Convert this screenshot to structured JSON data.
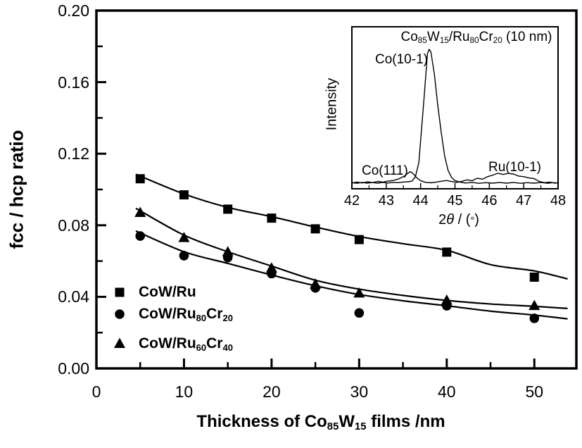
{
  "figure": {
    "background": "#ffffff",
    "foreground": "#000000"
  },
  "chart_data": {
    "type": "scatter",
    "xlabel_rich": [
      {
        "t": "Thickness of Co"
      },
      {
        "t": "85",
        "sub": true
      },
      {
        "t": "W"
      },
      {
        "t": "15",
        "sub": true
      },
      {
        "t": " films /nm"
      }
    ],
    "ylabel": "fcc / hcp ratio",
    "xlim": [
      0,
      54.8
    ],
    "ylim": [
      0,
      0.2
    ],
    "x_major_ticks": [
      0,
      10,
      20,
      30,
      40,
      50
    ],
    "x_minor_ticks": [
      5,
      15,
      25,
      35,
      45
    ],
    "y_major_ticks": [
      0.0,
      0.04,
      0.08,
      0.12,
      0.16,
      0.2
    ],
    "y_minor_ticks": [
      0.02,
      0.06,
      0.1,
      0.14,
      0.18
    ],
    "y_tick_decimals": 2,
    "grid": false,
    "legend_position": "lower-left-inside",
    "series": [
      {
        "name": "CoW/Ru",
        "marker": "square",
        "x": [
          5,
          10,
          15,
          20,
          25,
          30,
          40,
          50
        ],
        "y": [
          0.106,
          0.097,
          0.089,
          0.084,
          0.078,
          0.072,
          0.065,
          0.051
        ],
        "fit_x": [
          4.5,
          10,
          15,
          20,
          25,
          30,
          35,
          40,
          45,
          50,
          53.8
        ],
        "fit_y": [
          0.1085,
          0.0975,
          0.09,
          0.0848,
          0.079,
          0.0737,
          0.0697,
          0.066,
          0.058,
          0.0545,
          0.05
        ]
      },
      {
        "name": "CoW/Ru80Cr20",
        "marker": "circle",
        "x": [
          5,
          10,
          15,
          20,
          25,
          30,
          40,
          50
        ],
        "y": [
          0.074,
          0.063,
          0.062,
          0.053,
          0.045,
          0.031,
          0.035,
          0.028
        ],
        "fit_x": [
          4.5,
          10,
          15,
          20,
          25,
          30,
          35,
          40,
          45,
          50,
          53.8
        ],
        "fit_y": [
          0.0768,
          0.0652,
          0.0587,
          0.0522,
          0.0462,
          0.0413,
          0.0378,
          0.035,
          0.032,
          0.0298,
          0.0277
        ]
      },
      {
        "name": "CoW/Ru60Cr40",
        "marker": "triangle",
        "x": [
          5,
          10,
          15,
          20,
          25,
          30,
          40,
          50
        ],
        "y": [
          0.087,
          0.073,
          0.065,
          0.056,
          0.047,
          0.042,
          0.038,
          0.035
        ],
        "fit_x": [
          4.5,
          10,
          15,
          20,
          25,
          30,
          35,
          40,
          45,
          50,
          53.8
        ],
        "fit_y": [
          0.0895,
          0.0745,
          0.0652,
          0.0572,
          0.0493,
          0.0443,
          0.0408,
          0.038,
          0.036,
          0.0347,
          0.0335
        ]
      }
    ],
    "legend": [
      {
        "marker": "square",
        "label_rich": [
          {
            "t": "CoW/Ru"
          }
        ]
      },
      {
        "marker": "circle",
        "label_rich": [
          {
            "t": "CoW/Ru"
          },
          {
            "t": "80",
            "sub": true
          },
          {
            "t": "Cr"
          },
          {
            "t": "20",
            "sub": true
          }
        ]
      },
      {
        "marker": "triangle",
        "label_rich": [
          {
            "t": "CoW/Ru"
          },
          {
            "t": "60",
            "sub": true
          },
          {
            "t": "Cr"
          },
          {
            "t": "40",
            "sub": true
          }
        ]
      }
    ],
    "inset": {
      "title_rich": [
        {
          "t": "Co"
        },
        {
          "t": "85",
          "sub": true
        },
        {
          "t": "W"
        },
        {
          "t": "15",
          "sub": true
        },
        {
          "t": "/Ru"
        },
        {
          "t": "80",
          "sub": true
        },
        {
          "t": "Cr"
        },
        {
          "t": "20",
          "sub": true
        },
        {
          "t": " (10 nm)"
        }
      ],
      "ylabel": "Intensity",
      "xlabel_rich": [
        {
          "t": "2"
        },
        {
          "t": "θ",
          "italic": true
        },
        {
          "t": " / ("
        },
        {
          "t": "°",
          "small": true
        },
        {
          "t": ")"
        }
      ],
      "xlim": [
        42,
        48
      ],
      "x_ticks": [
        42,
        43,
        44,
        45,
        46,
        47,
        48
      ],
      "annotations": {
        "co101": {
          "text": "Co(10-1)",
          "x": 44.22
        },
        "co111": {
          "text": "Co(111)",
          "x": 43.7
        },
        "ru101": {
          "text": "Ru(10-1)",
          "x": 46.5
        }
      },
      "traces": [
        {
          "name": "Co(10-1) peak trace",
          "points": [
            [
              42.0,
              0.012
            ],
            [
              42.15,
              0.008
            ],
            [
              42.3,
              0.014
            ],
            [
              42.45,
              0.009
            ],
            [
              42.6,
              0.013
            ],
            [
              42.75,
              0.009
            ],
            [
              42.9,
              0.014
            ],
            [
              43.05,
              0.01
            ],
            [
              43.2,
              0.014
            ],
            [
              43.35,
              0.012
            ],
            [
              43.5,
              0.016
            ],
            [
              43.65,
              0.018
            ],
            [
              43.75,
              0.022
            ],
            [
              43.85,
              0.05
            ],
            [
              43.95,
              0.14
            ],
            [
              44.0,
              0.28
            ],
            [
              44.1,
              0.55
            ],
            [
              44.2,
              0.83
            ],
            [
              44.25,
              0.857
            ],
            [
              44.3,
              0.84
            ],
            [
              44.4,
              0.7
            ],
            [
              44.5,
              0.5
            ],
            [
              44.6,
              0.33
            ],
            [
              44.7,
              0.18
            ],
            [
              44.8,
              0.09
            ],
            [
              44.9,
              0.045
            ],
            [
              45.0,
              0.025
            ],
            [
              45.15,
              0.015
            ],
            [
              45.3,
              0.01
            ],
            [
              45.5,
              0.013
            ],
            [
              45.7,
              0.008
            ],
            [
              45.9,
              0.012
            ],
            [
              46.1,
              0.009
            ],
            [
              46.3,
              0.013
            ],
            [
              46.5,
              0.009
            ],
            [
              46.7,
              0.013
            ],
            [
              46.9,
              0.008
            ],
            [
              47.1,
              0.012
            ],
            [
              47.3,
              0.009
            ],
            [
              47.5,
              0.013
            ],
            [
              47.7,
              0.008
            ],
            [
              47.85,
              0.012
            ],
            [
              48.0,
              0.01
            ]
          ]
        },
        {
          "name": "Co(111) / Ru(10-1) trace",
          "points": [
            [
              42.0,
              0.01
            ],
            [
              42.15,
              0.016
            ],
            [
              42.3,
              0.01
            ],
            [
              42.45,
              0.018
            ],
            [
              42.6,
              0.012
            ],
            [
              42.75,
              0.02
            ],
            [
              42.9,
              0.015
            ],
            [
              43.05,
              0.022
            ],
            [
              43.2,
              0.026
            ],
            [
              43.35,
              0.035
            ],
            [
              43.5,
              0.05
            ],
            [
              43.6,
              0.066
            ],
            [
              43.7,
              0.082
            ],
            [
              43.78,
              0.07
            ],
            [
              43.88,
              0.044
            ],
            [
              44.0,
              0.024
            ],
            [
              44.15,
              0.014
            ],
            [
              44.3,
              0.011
            ],
            [
              44.45,
              0.015
            ],
            [
              44.6,
              0.021
            ],
            [
              44.75,
              0.026
            ],
            [
              44.9,
              0.019
            ],
            [
              45.05,
              0.014
            ],
            [
              45.2,
              0.02
            ],
            [
              45.35,
              0.03
            ],
            [
              45.5,
              0.024
            ],
            [
              45.65,
              0.04
            ],
            [
              45.8,
              0.034
            ],
            [
              45.95,
              0.05
            ],
            [
              46.1,
              0.06
            ],
            [
              46.25,
              0.072
            ],
            [
              46.4,
              0.064
            ],
            [
              46.55,
              0.071
            ],
            [
              46.7,
              0.067
            ],
            [
              46.85,
              0.054
            ],
            [
              47.0,
              0.05
            ],
            [
              47.15,
              0.042
            ],
            [
              47.3,
              0.038
            ],
            [
              47.45,
              0.02
            ],
            [
              47.6,
              0.012
            ],
            [
              47.75,
              0.016
            ],
            [
              47.9,
              0.009
            ],
            [
              48.0,
              0.012
            ]
          ]
        }
      ]
    }
  }
}
